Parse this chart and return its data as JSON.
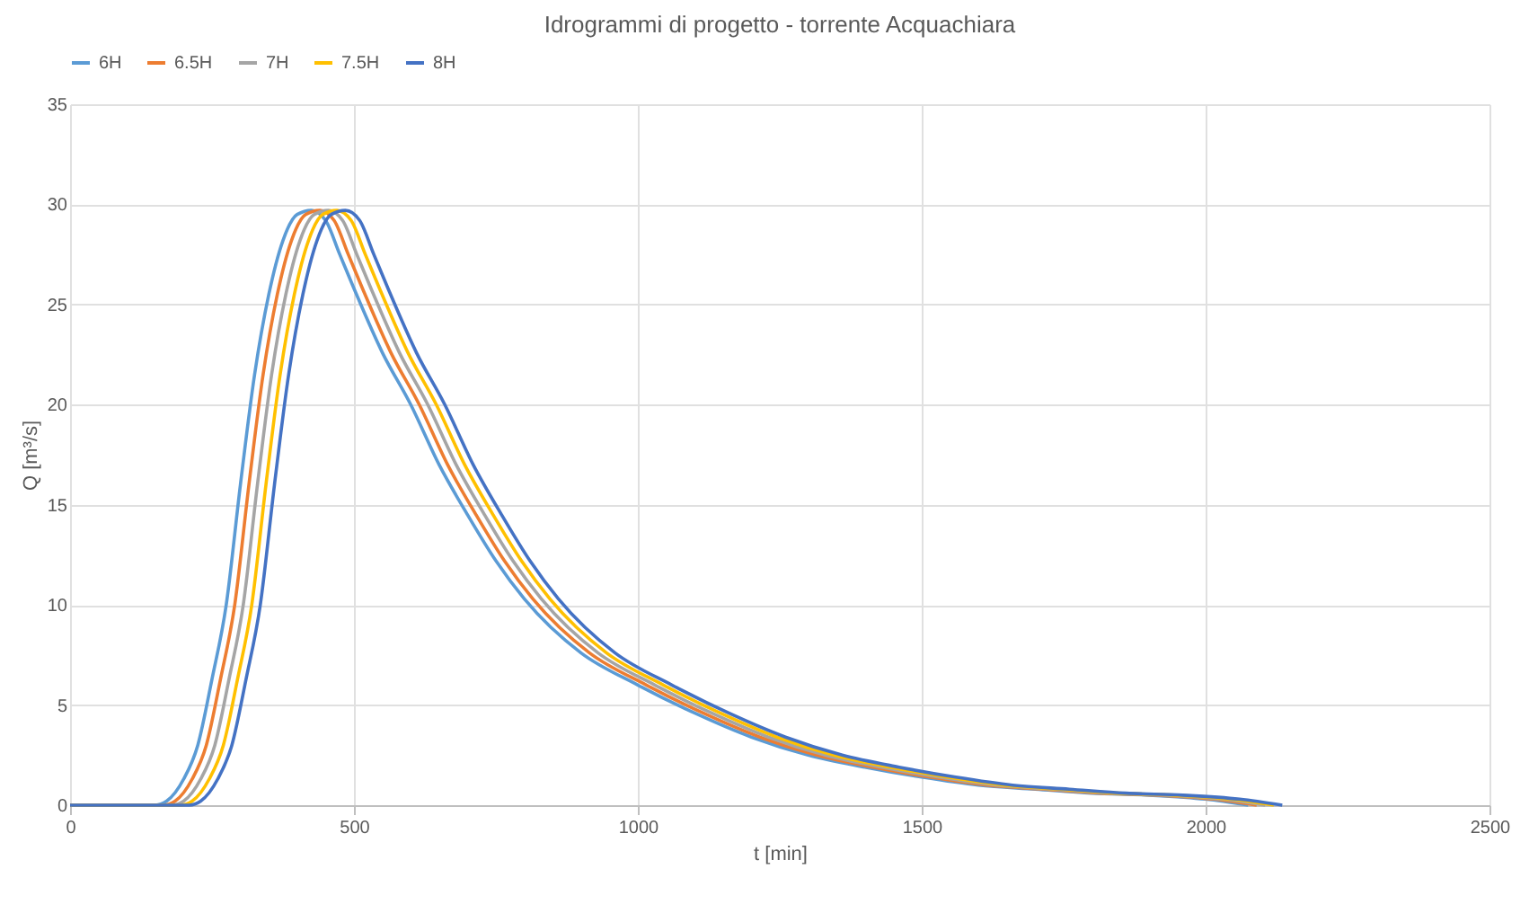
{
  "chart_data": {
    "type": "line",
    "title": "Idrogrammi di progetto - torrente Acquachiara",
    "xlabel": "t [min]",
    "ylabel": "Q [m³/s]",
    "xlim": [
      0,
      2500
    ],
    "xticks": [
      0,
      500,
      1000,
      1500,
      2000,
      2500
    ],
    "ylim": [
      0,
      35
    ],
    "yticks": [
      0,
      5,
      10,
      15,
      20,
      25,
      30,
      35
    ],
    "grid": true,
    "legend": "top",
    "marker": "none",
    "line_style": "solid",
    "series": [
      {
        "name": "6H",
        "color": "#5b9bd5",
        "x": [
          0,
          150,
          170,
          200,
          225,
          250,
          275,
          300,
          325,
          350,
          375,
          400,
          425,
          450,
          475,
          500,
          550,
          600,
          650,
          700,
          750,
          800,
          900,
          1000,
          1100,
          1200,
          1300,
          1400,
          1500,
          1600,
          1700,
          1800,
          1900,
          2000,
          2075
        ],
        "values": [
          0,
          0,
          0.2,
          1.3,
          3,
          6.3,
          10,
          16,
          21.5,
          25.5,
          28.2,
          29.5,
          29.7,
          29.2,
          27.5,
          25.8,
          22.6,
          20,
          17,
          14.5,
          12.2,
          10.3,
          7.6,
          6,
          4.6,
          3.4,
          2.5,
          1.9,
          1.4,
          1,
          0.8,
          0.6,
          0.5,
          0.3,
          0
        ]
      },
      {
        "name": "6.5H",
        "color": "#ed7d31",
        "x": [
          0,
          165,
          185,
          215,
          240,
          265,
          290,
          315,
          340,
          365,
          390,
          415,
          440,
          465,
          490,
          515,
          565,
          615,
          665,
          715,
          765,
          815,
          915,
          1015,
          1115,
          1215,
          1315,
          1415,
          1515,
          1615,
          1715,
          1815,
          1915,
          2015,
          2090
        ],
        "values": [
          0,
          0,
          0.2,
          1.3,
          3,
          6.3,
          10,
          16,
          21.5,
          25.5,
          28.2,
          29.5,
          29.7,
          29.2,
          27.5,
          25.8,
          22.6,
          20,
          17,
          14.5,
          12.2,
          10.3,
          7.6,
          6,
          4.6,
          3.4,
          2.5,
          1.9,
          1.4,
          1,
          0.8,
          0.6,
          0.5,
          0.3,
          0
        ]
      },
      {
        "name": "7H",
        "color": "#a5a5a5",
        "x": [
          0,
          180,
          200,
          230,
          255,
          280,
          305,
          330,
          355,
          380,
          405,
          430,
          455,
          480,
          505,
          530,
          580,
          630,
          680,
          730,
          780,
          830,
          930,
          1030,
          1130,
          1230,
          1330,
          1430,
          1530,
          1630,
          1730,
          1830,
          1930,
          2030,
          2105
        ],
        "values": [
          0,
          0,
          0.2,
          1.3,
          3,
          6.3,
          10,
          16,
          21.5,
          25.5,
          28.2,
          29.5,
          29.7,
          29.2,
          27.5,
          25.8,
          22.6,
          20,
          17,
          14.5,
          12.2,
          10.3,
          7.6,
          6,
          4.6,
          3.4,
          2.5,
          1.9,
          1.4,
          1,
          0.8,
          0.6,
          0.5,
          0.3,
          0
        ]
      },
      {
        "name": "7.5H",
        "color": "#ffc000",
        "x": [
          0,
          195,
          215,
          245,
          270,
          295,
          320,
          345,
          370,
          395,
          420,
          445,
          470,
          495,
          520,
          545,
          595,
          645,
          695,
          745,
          795,
          845,
          945,
          1045,
          1145,
          1245,
          1345,
          1445,
          1545,
          1645,
          1745,
          1845,
          1945,
          2045,
          2120
        ],
        "values": [
          0,
          0,
          0.2,
          1.3,
          3,
          6.3,
          10,
          16,
          21.5,
          25.5,
          28.2,
          29.5,
          29.7,
          29.2,
          27.5,
          25.8,
          22.6,
          20,
          17,
          14.5,
          12.2,
          10.3,
          7.6,
          6,
          4.6,
          3.4,
          2.5,
          1.9,
          1.4,
          1,
          0.8,
          0.6,
          0.5,
          0.3,
          0
        ]
      },
      {
        "name": "8H",
        "color": "#4472c4",
        "x": [
          0,
          210,
          230,
          260,
          285,
          310,
          335,
          360,
          385,
          410,
          435,
          460,
          485,
          510,
          535,
          560,
          610,
          660,
          710,
          760,
          810,
          860,
          960,
          1060,
          1160,
          1260,
          1360,
          1460,
          1560,
          1660,
          1760,
          1860,
          1960,
          2060,
          2135
        ],
        "values": [
          0,
          0,
          0.2,
          1.3,
          3,
          6.3,
          10,
          16,
          21.5,
          25.5,
          28.2,
          29.5,
          29.7,
          29.2,
          27.5,
          25.8,
          22.6,
          20,
          17,
          14.5,
          12.2,
          10.3,
          7.6,
          6,
          4.6,
          3.4,
          2.5,
          1.9,
          1.4,
          1,
          0.8,
          0.6,
          0.5,
          0.3,
          0
        ]
      }
    ]
  }
}
